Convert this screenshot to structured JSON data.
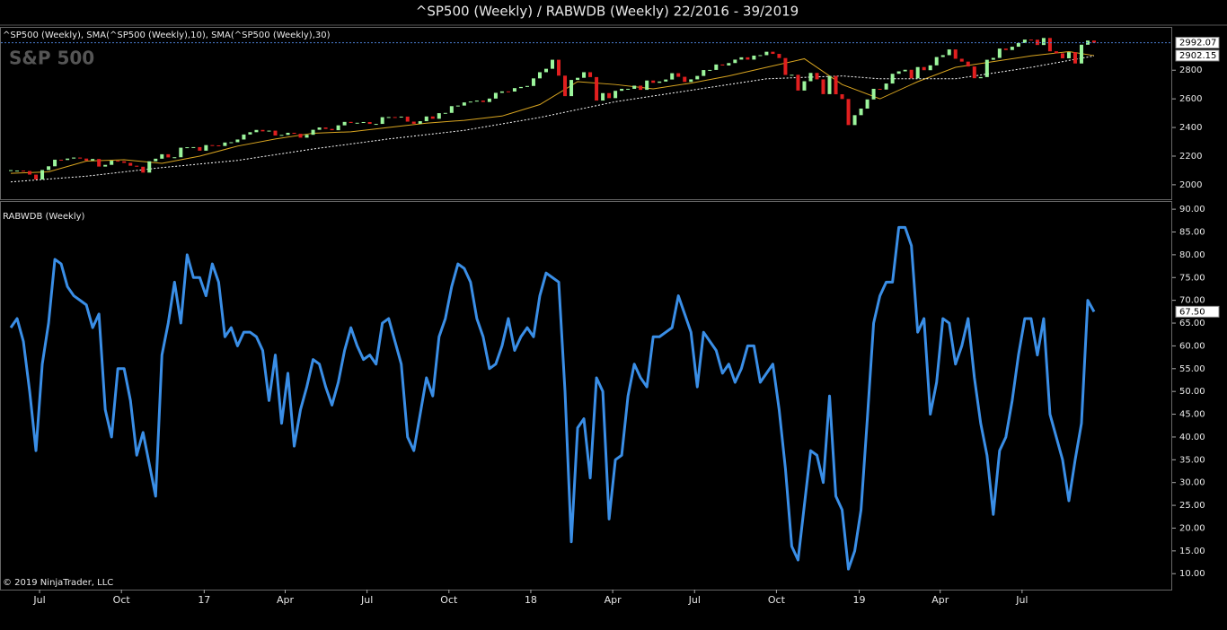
{
  "title": "^SP500 (Weekly) / RABWDB (Weekly)  22/2016 - 39/2019",
  "copyright": "© 2019 NinjaTrader, LLC",
  "chart_data": [
    {
      "type": "candlestick",
      "label": "^SP500 (Weekly), SMA(^SP500 (Weekly),10), SMA(^SP500 (Weekly),30)",
      "watermark": "S&P 500",
      "up_color": "#9cf59c",
      "down_color": "#e01f1f",
      "values": [
        2099,
        2099,
        2096,
        2071,
        2037,
        2103,
        2129,
        2175,
        2173,
        2183,
        2190,
        2183,
        2169,
        2180,
        2127,
        2139,
        2168,
        2164,
        2153,
        2133,
        2126,
        2085,
        2164,
        2182,
        2213,
        2191,
        2192,
        2259,
        2262,
        2263,
        2238,
        2277,
        2275,
        2271,
        2295,
        2297,
        2316,
        2351,
        2367,
        2383,
        2373,
        2378,
        2344,
        2348,
        2363,
        2356,
        2329,
        2349,
        2384,
        2400,
        2390,
        2381,
        2415,
        2439,
        2432,
        2433,
        2438,
        2425,
        2425,
        2472,
        2473,
        2472,
        2476,
        2441,
        2426,
        2444,
        2477,
        2461,
        2500,
        2502,
        2549,
        2553,
        2575,
        2581,
        2588,
        2578,
        2602,
        2642,
        2652,
        2651,
        2675,
        2683,
        2690,
        2743,
        2786,
        2810,
        2873,
        2762,
        2619,
        2732,
        2747,
        2786,
        2752,
        2588,
        2640,
        2605,
        2656,
        2670,
        2670,
        2692,
        2663,
        2728,
        2712,
        2721,
        2735,
        2779,
        2754,
        2718,
        2736,
        2760,
        2801,
        2802,
        2840,
        2833,
        2850,
        2874,
        2890,
        2874,
        2902,
        2905,
        2929,
        2914,
        2885,
        2767,
        2768,
        2658,
        2723,
        2781,
        2736,
        2633,
        2760,
        2632,
        2599,
        2417,
        2486,
        2532,
        2596,
        2670,
        2665,
        2707,
        2775,
        2792,
        2803,
        2743,
        2822,
        2800,
        2834,
        2892,
        2905,
        2945,
        2880,
        2860,
        2826,
        2744,
        2752,
        2873,
        2886,
        2951,
        2941,
        2964,
        2990,
        3014,
        3013,
        2976,
        3025,
        2932,
        2918,
        2883,
        2926,
        2847,
        2978,
        3007,
        2992.07
      ],
      "series": [
        {
          "color": "#d9a520",
          "dash": false,
          "x": [
            0,
            6,
            12,
            18,
            24,
            30,
            36,
            42,
            48,
            54,
            60,
            66,
            72,
            78,
            84,
            90,
            96,
            102,
            108,
            114,
            120,
            126,
            132,
            138,
            144,
            150,
            156,
            162,
            168,
            172
          ],
          "values": [
            2080,
            2090,
            2165,
            2175,
            2150,
            2200,
            2270,
            2320,
            2360,
            2370,
            2400,
            2430,
            2450,
            2480,
            2560,
            2720,
            2700,
            2670,
            2710,
            2760,
            2820,
            2880,
            2700,
            2600,
            2720,
            2820,
            2860,
            2900,
            2930,
            2902.15
          ]
        },
        {
          "color": "#ffffff",
          "dash": true,
          "x": [
            0,
            12,
            24,
            36,
            48,
            60,
            72,
            84,
            96,
            108,
            120,
            132,
            138,
            150,
            162,
            172
          ],
          "values": [
            2020,
            2060,
            2120,
            2170,
            2250,
            2320,
            2380,
            2470,
            2580,
            2660,
            2740,
            2760,
            2740,
            2740,
            2820,
            2900
          ]
        }
      ],
      "price_labels": [
        2992.07,
        2902.15
      ],
      "ylim": [
        1899,
        3096
      ],
      "yticks": [
        2000,
        2200,
        2400,
        2600,
        2800
      ]
    },
    {
      "type": "line",
      "label": "RABWDB (Weekly)",
      "color": "#3a8ee6",
      "values": [
        64,
        66,
        61,
        50,
        37,
        56,
        65,
        79,
        78,
        73,
        71,
        70,
        69,
        64,
        67,
        46,
        40,
        55,
        55,
        48,
        36,
        41,
        34,
        27,
        58,
        65,
        74,
        65,
        80,
        75,
        75,
        71,
        78,
        74,
        62,
        64,
        60,
        63,
        63,
        62,
        59,
        48,
        58,
        43,
        54,
        38,
        46,
        51,
        57,
        56,
        51,
        47,
        52,
        59,
        64,
        60,
        57,
        58,
        56,
        65,
        66,
        61,
        56,
        40,
        37,
        45,
        53,
        49,
        62,
        66,
        73,
        78,
        77,
        74,
        66,
        62,
        55,
        56,
        60,
        66,
        59,
        62,
        64,
        62,
        71,
        76,
        75,
        74,
        50,
        17,
        42,
        44,
        31,
        53,
        50,
        22,
        35,
        36,
        49,
        56,
        53,
        51,
        62,
        62,
        63,
        64,
        71,
        67,
        63,
        51,
        63,
        61,
        59,
        54,
        56,
        52,
        55,
        60,
        60,
        52,
        54,
        56,
        46,
        33,
        16,
        13,
        25,
        37,
        36,
        30,
        49,
        27,
        24,
        11,
        15,
        24,
        44,
        65,
        71,
        74,
        74,
        86,
        86,
        82,
        63,
        66,
        45,
        52,
        66,
        65,
        56,
        60,
        66,
        53,
        43,
        36,
        23,
        37,
        40,
        48,
        58,
        66,
        66,
        58,
        66,
        45,
        40,
        35,
        26,
        35,
        43,
        70,
        67.5
      ],
      "price_labels": [
        {
          "value": 67.5,
          "label": "67.50"
        }
      ],
      "ylim": [
        6.5,
        91.6
      ],
      "yticks": [
        {
          "value": 10,
          "label": "10.00"
        },
        {
          "value": 15,
          "label": "15.00"
        },
        {
          "value": 20,
          "label": "20.00"
        },
        {
          "value": 25,
          "label": "25.00"
        },
        {
          "value": 30,
          "label": "30.00"
        },
        {
          "value": 35,
          "label": "35.00"
        },
        {
          "value": 40,
          "label": "40.00"
        },
        {
          "value": 45,
          "label": "45.00"
        },
        {
          "value": 50,
          "label": "50.00"
        },
        {
          "value": 55,
          "label": "55.00"
        },
        {
          "value": 60,
          "label": "60.00"
        },
        {
          "value": 65,
          "label": "65.00"
        },
        {
          "value": 70,
          "label": "70.00"
        },
        {
          "value": 75,
          "label": "75.00"
        },
        {
          "value": 80,
          "label": "80.00"
        },
        {
          "value": 85,
          "label": "85.00"
        },
        {
          "value": 90,
          "label": "90.00"
        }
      ],
      "xticks": [
        {
          "value": 4.57,
          "label": "Jul"
        },
        {
          "value": 17.57,
          "label": "Oct"
        },
        {
          "value": 30.71,
          "label": "17"
        },
        {
          "value": 43.57,
          "label": "Apr"
        },
        {
          "value": 56.57,
          "label": "Jul"
        },
        {
          "value": 69.57,
          "label": "Oct"
        },
        {
          "value": 82.57,
          "label": "18"
        },
        {
          "value": 95.57,
          "label": "Apr"
        },
        {
          "value": 108.57,
          "label": "Jul"
        },
        {
          "value": 121.57,
          "label": "Oct"
        },
        {
          "value": 134.71,
          "label": "19"
        },
        {
          "value": 147.57,
          "label": "Apr"
        },
        {
          "value": 160.57,
          "label": "Jul"
        }
      ]
    }
  ]
}
